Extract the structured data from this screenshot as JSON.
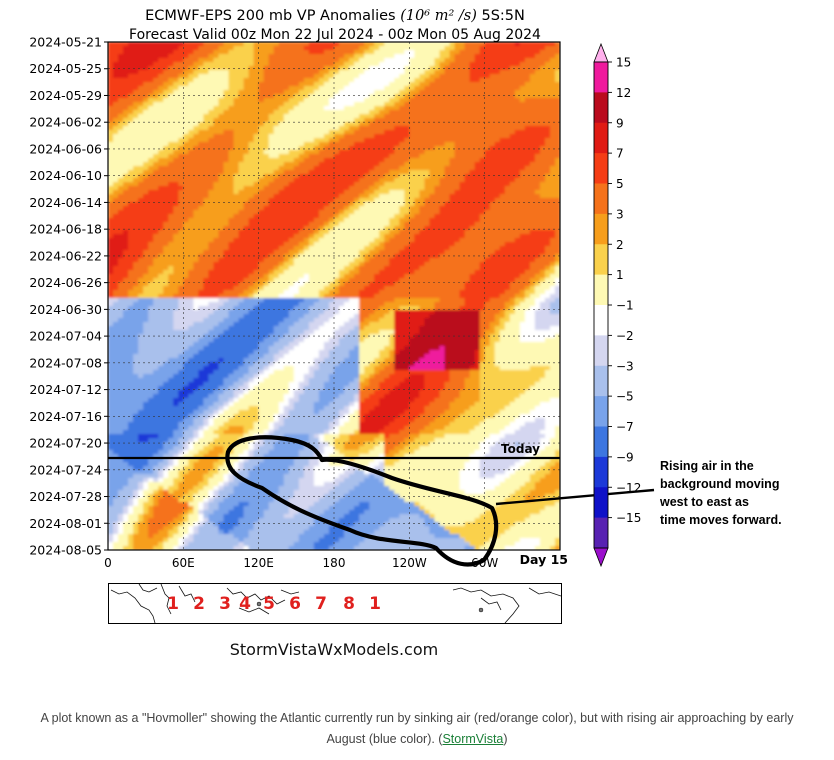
{
  "chart_data": {
    "type": "heatmap",
    "title_line1": "ECMWF-EPS 200 mb VP Anomalies",
    "title_units": "(10⁶ m² /s)",
    "title_region": "5S:5N",
    "title_line2": "Forecast Valid 00z Mon 22 Jul 2024 - 00z Mon 05 Aug 2024",
    "y_tick_labels": [
      "2024-05-21",
      "2024-05-25",
      "2024-05-29",
      "2024-06-02",
      "2024-06-06",
      "2024-06-10",
      "2024-06-14",
      "2024-06-18",
      "2024-06-22",
      "2024-06-26",
      "2024-06-30",
      "2024-07-04",
      "2024-07-08",
      "2024-07-12",
      "2024-07-16",
      "2024-07-20",
      "2024-07-24",
      "2024-07-28",
      "2024-08-01",
      "2024-08-05"
    ],
    "x_tick_labels": [
      "0",
      "60E",
      "120E",
      "180",
      "120W",
      "60W"
    ],
    "x_extra_label": "Day 15",
    "today_label": "Today",
    "colorbar": {
      "ticks": [
        "15",
        "12",
        "9",
        "7",
        "5",
        "3",
        "2",
        "1",
        "−1",
        "−2",
        "−3",
        "−5",
        "−7",
        "−9",
        "−12",
        "−15"
      ],
      "colors": [
        "#ffb0ec",
        "#ef1a9d",
        "#ba0b1e",
        "#e01b14",
        "#f53d15",
        "#f5721b",
        "#f79e1c",
        "#fad14c",
        "#fef9b4",
        "#ffffff",
        "#d4d6f0",
        "#a9c0ec",
        "#79a3ea",
        "#3d76e0",
        "#1c39d8",
        "#0f11c8",
        "#5822b2",
        "#9b0fcc"
      ]
    },
    "regions": [
      "1",
      "2",
      "3",
      "4",
      "5",
      "6",
      "7",
      "8",
      "1"
    ],
    "annotation": "Rising air in the background moving west to east as time moves forward.",
    "colors": {
      "sinking": "#f53d15",
      "rising": "#3d76e0"
    }
  },
  "watermark": "StormVistaWxModels.com",
  "caption": {
    "text": "A plot known as a \"Hovmoller\" showing the Atlantic currently run by sinking air (red/orange color), but with rising air approaching by early August (blue color). (",
    "link": "StormVista",
    "close": ")"
  }
}
